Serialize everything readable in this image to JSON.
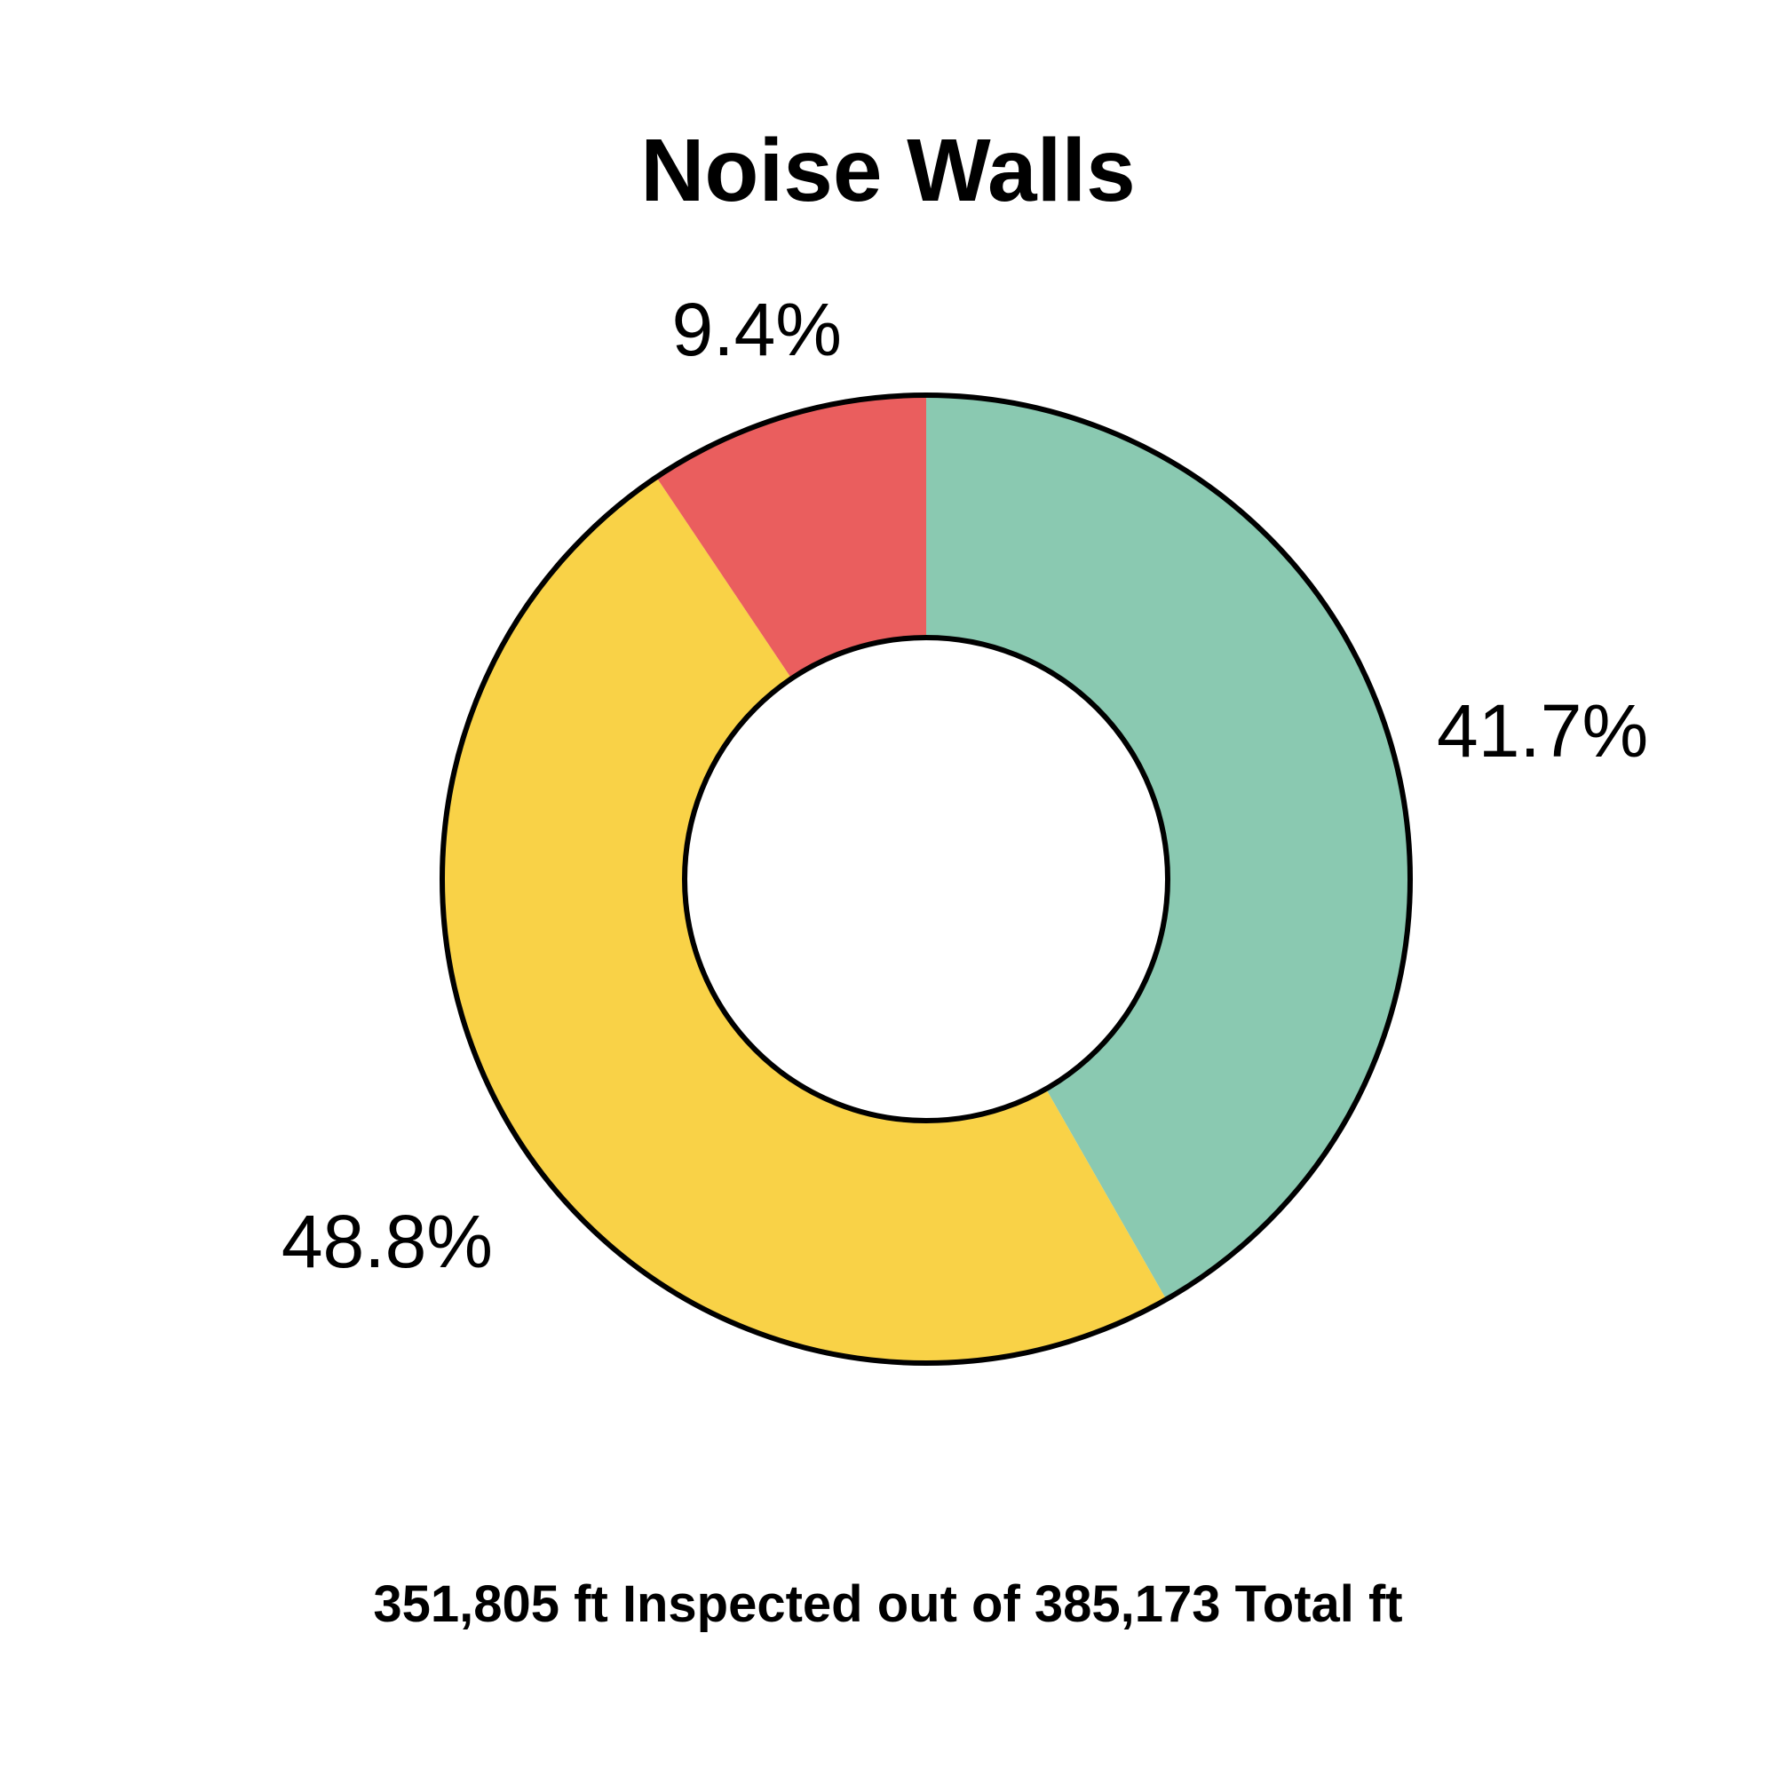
{
  "chart_data": {
    "type": "pie",
    "title": "Noise Walls",
    "subtitle": "",
    "donut": true,
    "slices": [
      {
        "value": 41.7,
        "label": "41.7%",
        "color": "#8AC9B1"
      },
      {
        "value": 48.8,
        "label": "48.8%",
        "color": "#F9D247"
      },
      {
        "value": 9.4,
        "label": "9.4%",
        "color": "#EA5E5E"
      }
    ],
    "legend": "none"
  },
  "footer": {
    "text": "351,805 ft Inspected out of 385,173 Total ft"
  }
}
